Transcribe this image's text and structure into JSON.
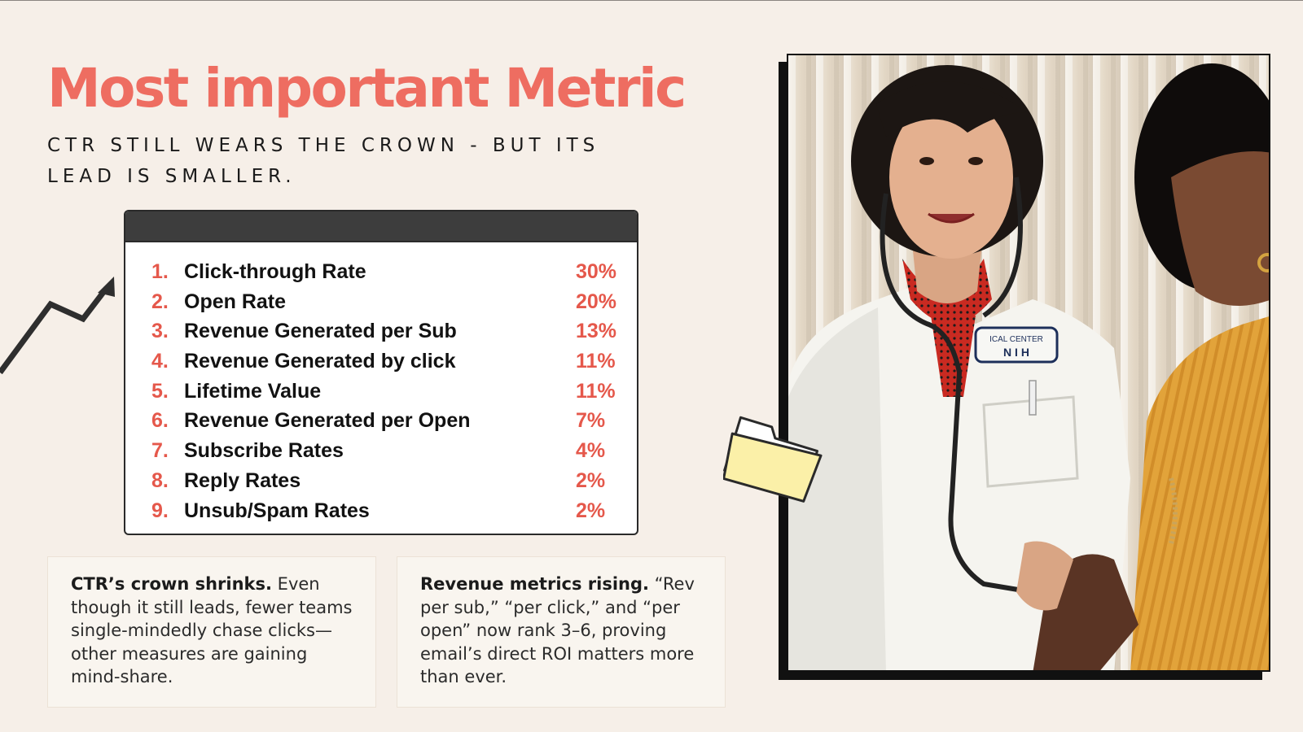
{
  "header": {
    "title": "Most important Metric",
    "subtitle": "CTR STILL WEARS THE CROWN - BUT ITS LEAD IS SMALLER."
  },
  "ranking": [
    {
      "rank": "1.",
      "label": "Click-through Rate",
      "value": "30%"
    },
    {
      "rank": "2.",
      "label": "Open Rate",
      "value": "20%"
    },
    {
      "rank": "3.",
      "label": "Revenue Generated per Sub",
      "value": "13%"
    },
    {
      "rank": "4.",
      "label": "Revenue Generated by click",
      "value": "11%"
    },
    {
      "rank": "5.",
      "label": "Lifetime Value",
      "value": "11%"
    },
    {
      "rank": "6.",
      "label": "Revenue Generated per Open",
      "value": "7%"
    },
    {
      "rank": "7.",
      "label": "Subscribe Rates",
      "value": "4%"
    },
    {
      "rank": "8.",
      "label": "Reply Rates",
      "value": "2%"
    },
    {
      "rank": "9.",
      "label": "Unsub/Spam Rates",
      "value": "2%"
    }
  ],
  "cards": {
    "left": {
      "heading": "CTR’s crown shrinks.",
      "body": " Even though it still leads, fewer teams single-mindedly chase clicks—other measures are gaining mind-share."
    },
    "right": {
      "heading": "Revenue metrics rising.",
      "body": " “Rev per sub,” “per click,” and “per open” now rank 3–6, proving email’s direct ROI matters more than ever."
    }
  },
  "photo": {
    "badge_line1": "ICAL CENTER",
    "badge_line2": "N I H"
  },
  "icons": {
    "arrow": "trend-up-arrow-icon",
    "folder": "folder-icon"
  },
  "colors": {
    "accent": "#ee6d61",
    "rank_accent": "#e5584b",
    "background": "#f6efe8",
    "panel_bar": "#3d3d3d",
    "folder_fill": "#fbf0a8"
  }
}
